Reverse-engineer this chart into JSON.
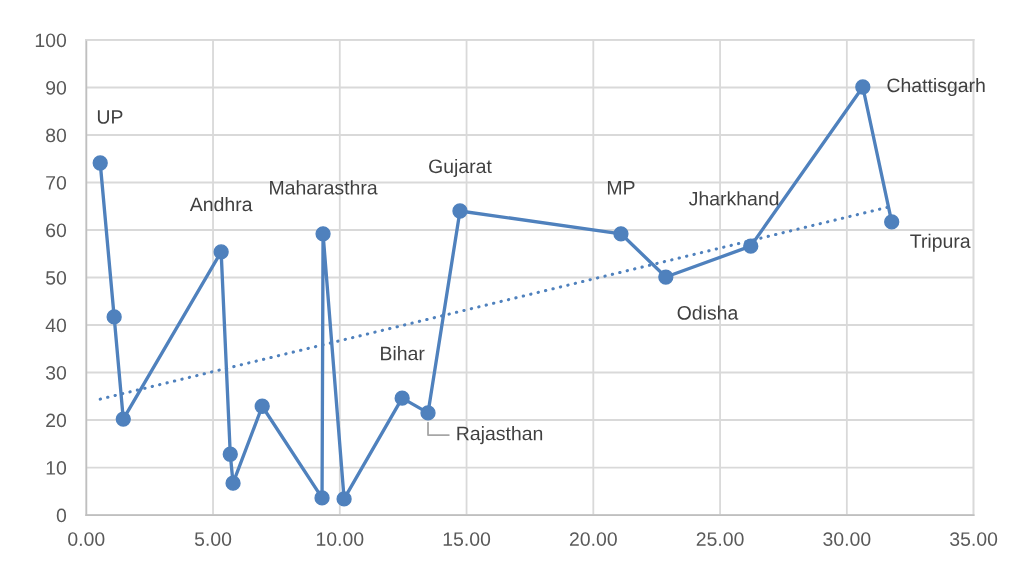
{
  "chart_data": {
    "type": "line",
    "x": [
      0.55,
      1.1,
      1.46,
      5.32,
      5.68,
      5.79,
      6.94,
      9.3,
      9.34,
      10.17,
      12.46,
      13.48,
      14.74,
      21.09,
      22.86,
      26.21,
      30.63,
      31.77
    ],
    "series": [
      {
        "color": "#4f81bd",
        "marker": "circle",
        "line_style": "solid",
        "values": [
          74.1,
          41.7,
          20.2,
          55.4,
          12.8,
          6.7,
          22.9,
          3.6,
          59.2,
          3.4,
          24.6,
          21.5,
          64.0,
          59.2,
          50.1,
          56.6,
          90.1,
          61.7
        ]
      },
      {
        "type": "line",
        "x": [
          0.55,
          31.77
        ],
        "values": [
          24.4,
          65.0
        ],
        "color": "#4f81bd",
        "marker": "none",
        "line_style": "dotted"
      }
    ],
    "xlim": [
      0,
      35
    ],
    "xticks": [
      {
        "value": 0,
        "label": "0.00"
      },
      {
        "value": 5,
        "label": "5.00"
      },
      {
        "value": 10,
        "label": "10.00"
      },
      {
        "value": 15,
        "label": "15.00"
      },
      {
        "value": 20,
        "label": "20.00"
      },
      {
        "value": 25,
        "label": "25.00"
      },
      {
        "value": 30,
        "label": "30.00"
      },
      {
        "value": 35,
        "label": "35.00"
      }
    ],
    "ylim": [
      0,
      100
    ],
    "yticks": [
      0,
      10,
      20,
      30,
      40,
      50,
      60,
      70,
      80,
      90,
      100
    ],
    "grid": true,
    "annotations": [
      {
        "text": "UP",
        "x": 0.55,
        "y": 74.1
      },
      {
        "text": "Andhra",
        "x": 5.32,
        "y": 55.4
      },
      {
        "text": "Maharasthra",
        "x": 9.34,
        "y": 59.2
      },
      {
        "text": "Bihar",
        "x": 12.46,
        "y": 24.6
      },
      {
        "text": "Rajasthan",
        "x": 13.48,
        "y": 21.5
      },
      {
        "text": "Gujarat",
        "x": 14.74,
        "y": 64.0
      },
      {
        "text": "MP",
        "x": 21.09,
        "y": 59.2
      },
      {
        "text": "Odisha",
        "x": 22.86,
        "y": 50.1
      },
      {
        "text": "Jharkhand",
        "x": 26.21,
        "y": 56.6
      },
      {
        "text": "Chattisgarh",
        "x": 30.63,
        "y": 90.1
      },
      {
        "text": "Tripura",
        "x": 31.77,
        "y": 61.7
      }
    ]
  }
}
